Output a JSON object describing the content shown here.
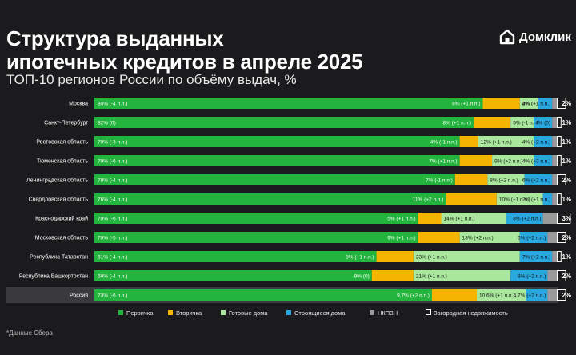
{
  "header": {
    "title_line1": "Структура выданных",
    "title_line2": "ипотечных кредитов в апреле 2025",
    "subtitle": "ТОП-10 регионов России по объёму выдач, %",
    "brand": "Домклик"
  },
  "footnote": "*Данные Сбера",
  "colors": {
    "primary": "#22b43c",
    "secondary": "#f5b400",
    "ready": "#a9e79d",
    "building": "#29a8e0",
    "nkpzn": "#9a9a9a",
    "country": "#ffffff",
    "highlight_row": "#3a3a3c"
  },
  "chart_data": {
    "type": "bar",
    "orientation": "horizontal",
    "stacked": true,
    "categories": [
      "Москва",
      "Санкт-Петербург",
      "Ростовская область",
      "Тюменская область",
      "Ленинградская область",
      "Свердловская область",
      "Краснодарский край",
      "Московская область",
      "Республика Татарстан",
      "Республика Башкортостан",
      "Россия"
    ],
    "series": [
      {
        "name": "Первичка",
        "key": "primary",
        "values": [
          84,
          82,
          79,
          79,
          78,
          76,
          70,
          70,
          61,
          60,
          73
        ],
        "labels": [
          "84% (-4 п.п.)",
          "82% (0)",
          "79% (-3 п.п.)",
          "79% (-6 п.п.)",
          "78% (-4 п.п.)",
          "76% (-4 п.п.)",
          "70% (-6 п.п.)",
          "70% (-5 п.п.)",
          "61% (-4 п.п.)",
          "60% (-4 п.п.)",
          "73% (-6 п.п.)"
        ]
      },
      {
        "name": "Вторичка",
        "key": "secondary",
        "values": [
          8,
          8,
          4,
          7,
          7,
          11,
          5,
          9,
          8,
          9,
          9.7
        ],
        "labels": [
          "8% (+1 п.п.)",
          "8% (+1 п.п.)",
          "4% (-1 п.п.)",
          "7% (+1 п.п.)",
          "7% (-1 п.п.)",
          "11% (+2 п.п.)",
          "5% (+1 п.п.)",
          "9% (+1 п.п.)",
          "8% (+1 п.п.)",
          "9% (0)",
          "9,7% (+2 п.п.)"
        ]
      },
      {
        "name": "Готовые дома",
        "key": "ready",
        "values": [
          4,
          5,
          12,
          9,
          8,
          10,
          14,
          13,
          23,
          21,
          10.6
        ],
        "labels": [
          "4% (+1 п.п.)",
          "5% (-1 п.п.)",
          "12% (+1 п.п.)",
          "9% (+2 п.п.)",
          "8% (+2 п.п.)",
          "10% (+1 п.п.)",
          "14% (+1 п.п.)",
          "13% (+2 п.п.)",
          "23% (+1 п.п.)",
          "21% (+1 п.п.)",
          "10,6% (+1 п.п.)"
        ]
      },
      {
        "name": "Строящиеся дома",
        "key": "building",
        "values": [
          3,
          4,
          4,
          4,
          6,
          2,
          8,
          6,
          7,
          8,
          4.7
        ],
        "labels": [
          "3% (+1 п.п.)",
          "4% (0)",
          "4% (+2 п.п.)",
          "4% (+3 п.п.)",
          "6% (+2 п.п.)",
          "2% (+1 п.п.)",
          "8% (+2 п.п.)",
          "6% (+2 п.п.)",
          "7% (+2 п.п.)",
          "8% (+2 п.п.)",
          "4,7% (+2 п.п.)"
        ]
      },
      {
        "name": "НКПЗН",
        "key": "nkpzn",
        "values": [
          1,
          1,
          1,
          1,
          1,
          1,
          3,
          2,
          1,
          2,
          2
        ],
        "labels": []
      },
      {
        "name": "Загородная недвижимость",
        "key": "country",
        "values": [
          2,
          1,
          1,
          1,
          2,
          1,
          3,
          2,
          1,
          2,
          2
        ],
        "labels": [
          "2%",
          "1%",
          "1%",
          "1%",
          "2%",
          "1%",
          "3%",
          "2%",
          "1%",
          "2%",
          "2%"
        ]
      }
    ],
    "highlight_category": "Россия",
    "legend_position": "bottom",
    "xlim": [
      0,
      100
    ],
    "grid": false
  }
}
